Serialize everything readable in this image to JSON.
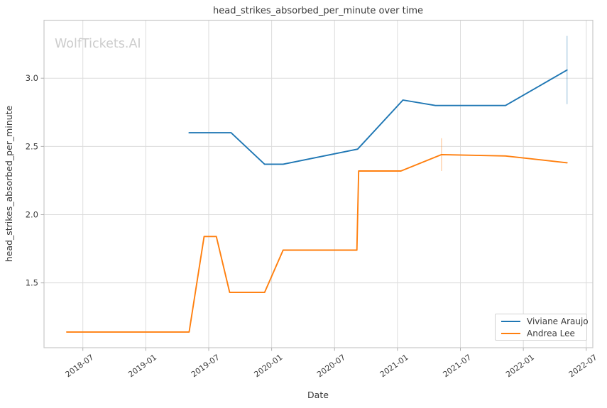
{
  "watermark": "WolfTickets.AI",
  "chart_data": {
    "type": "line",
    "title": "head_strikes_absorbed_per_minute over time",
    "xlabel": "Date",
    "ylabel": "head_strikes_absorbed_per_minute",
    "x_tick_labels": [
      "2018-07",
      "2019-01",
      "2019-07",
      "2020-01",
      "2020-07",
      "2021-01",
      "2021-07",
      "2022-01",
      "2022-07"
    ],
    "y_tick_labels": [
      "1.5",
      "2.0",
      "2.5",
      "3.0"
    ],
    "y_ticks": [
      1.5,
      2.0,
      2.5,
      3.0
    ],
    "x_range": [
      "2018-03-10",
      "2022-07-20"
    ],
    "y_range": [
      1.025,
      3.425
    ],
    "grid": true,
    "legend_position": "lower right",
    "series": [
      {
        "name": "Viviane Araujo",
        "color": "#1f77b4",
        "error_color": "rgba(31,119,180,0.3)",
        "points": [
          {
            "date": "2019-05-05",
            "value": 2.6
          },
          {
            "date": "2019-09-05",
            "value": 2.6
          },
          {
            "date": "2019-12-11",
            "value": 2.37
          },
          {
            "date": "2020-02-04",
            "value": 2.37
          },
          {
            "date": "2020-09-07",
            "value": 2.48
          },
          {
            "date": "2021-01-17",
            "value": 2.84
          },
          {
            "date": "2021-04-20",
            "value": 2.8
          },
          {
            "date": "2021-11-10",
            "value": 2.8
          },
          {
            "date": "2022-05-06",
            "value": 3.06
          }
        ],
        "error_bars": [
          {
            "date": "2022-05-06",
            "low": 2.81,
            "high": 3.31
          }
        ]
      },
      {
        "name": "Andrea Lee",
        "color": "#ff7f0e",
        "error_color": "rgba(255,127,14,0.3)",
        "points": [
          {
            "date": "2018-05-15",
            "value": 1.14
          },
          {
            "date": "2019-05-05",
            "value": 1.14
          },
          {
            "date": "2019-06-18",
            "value": 1.84
          },
          {
            "date": "2019-07-23",
            "value": 1.84
          },
          {
            "date": "2019-09-01",
            "value": 1.43
          },
          {
            "date": "2019-12-11",
            "value": 1.43
          },
          {
            "date": "2020-02-04",
            "value": 1.74
          },
          {
            "date": "2020-09-05",
            "value": 1.74
          },
          {
            "date": "2020-09-10",
            "value": 2.32
          },
          {
            "date": "2021-01-11",
            "value": 2.32
          },
          {
            "date": "2021-05-07",
            "value": 2.44
          },
          {
            "date": "2021-11-10",
            "value": 2.43
          },
          {
            "date": "2022-05-06",
            "value": 2.38
          }
        ],
        "error_bars": [
          {
            "date": "2021-05-07",
            "low": 2.32,
            "high": 2.56
          }
        ]
      }
    ],
    "colors": {
      "grid": "#dcdcdc",
      "spine": "#c9c9c9",
      "tick": "#b0b0b0",
      "text": "#3a3a3a",
      "watermark": "#cccccc",
      "background": "#ffffff"
    }
  }
}
